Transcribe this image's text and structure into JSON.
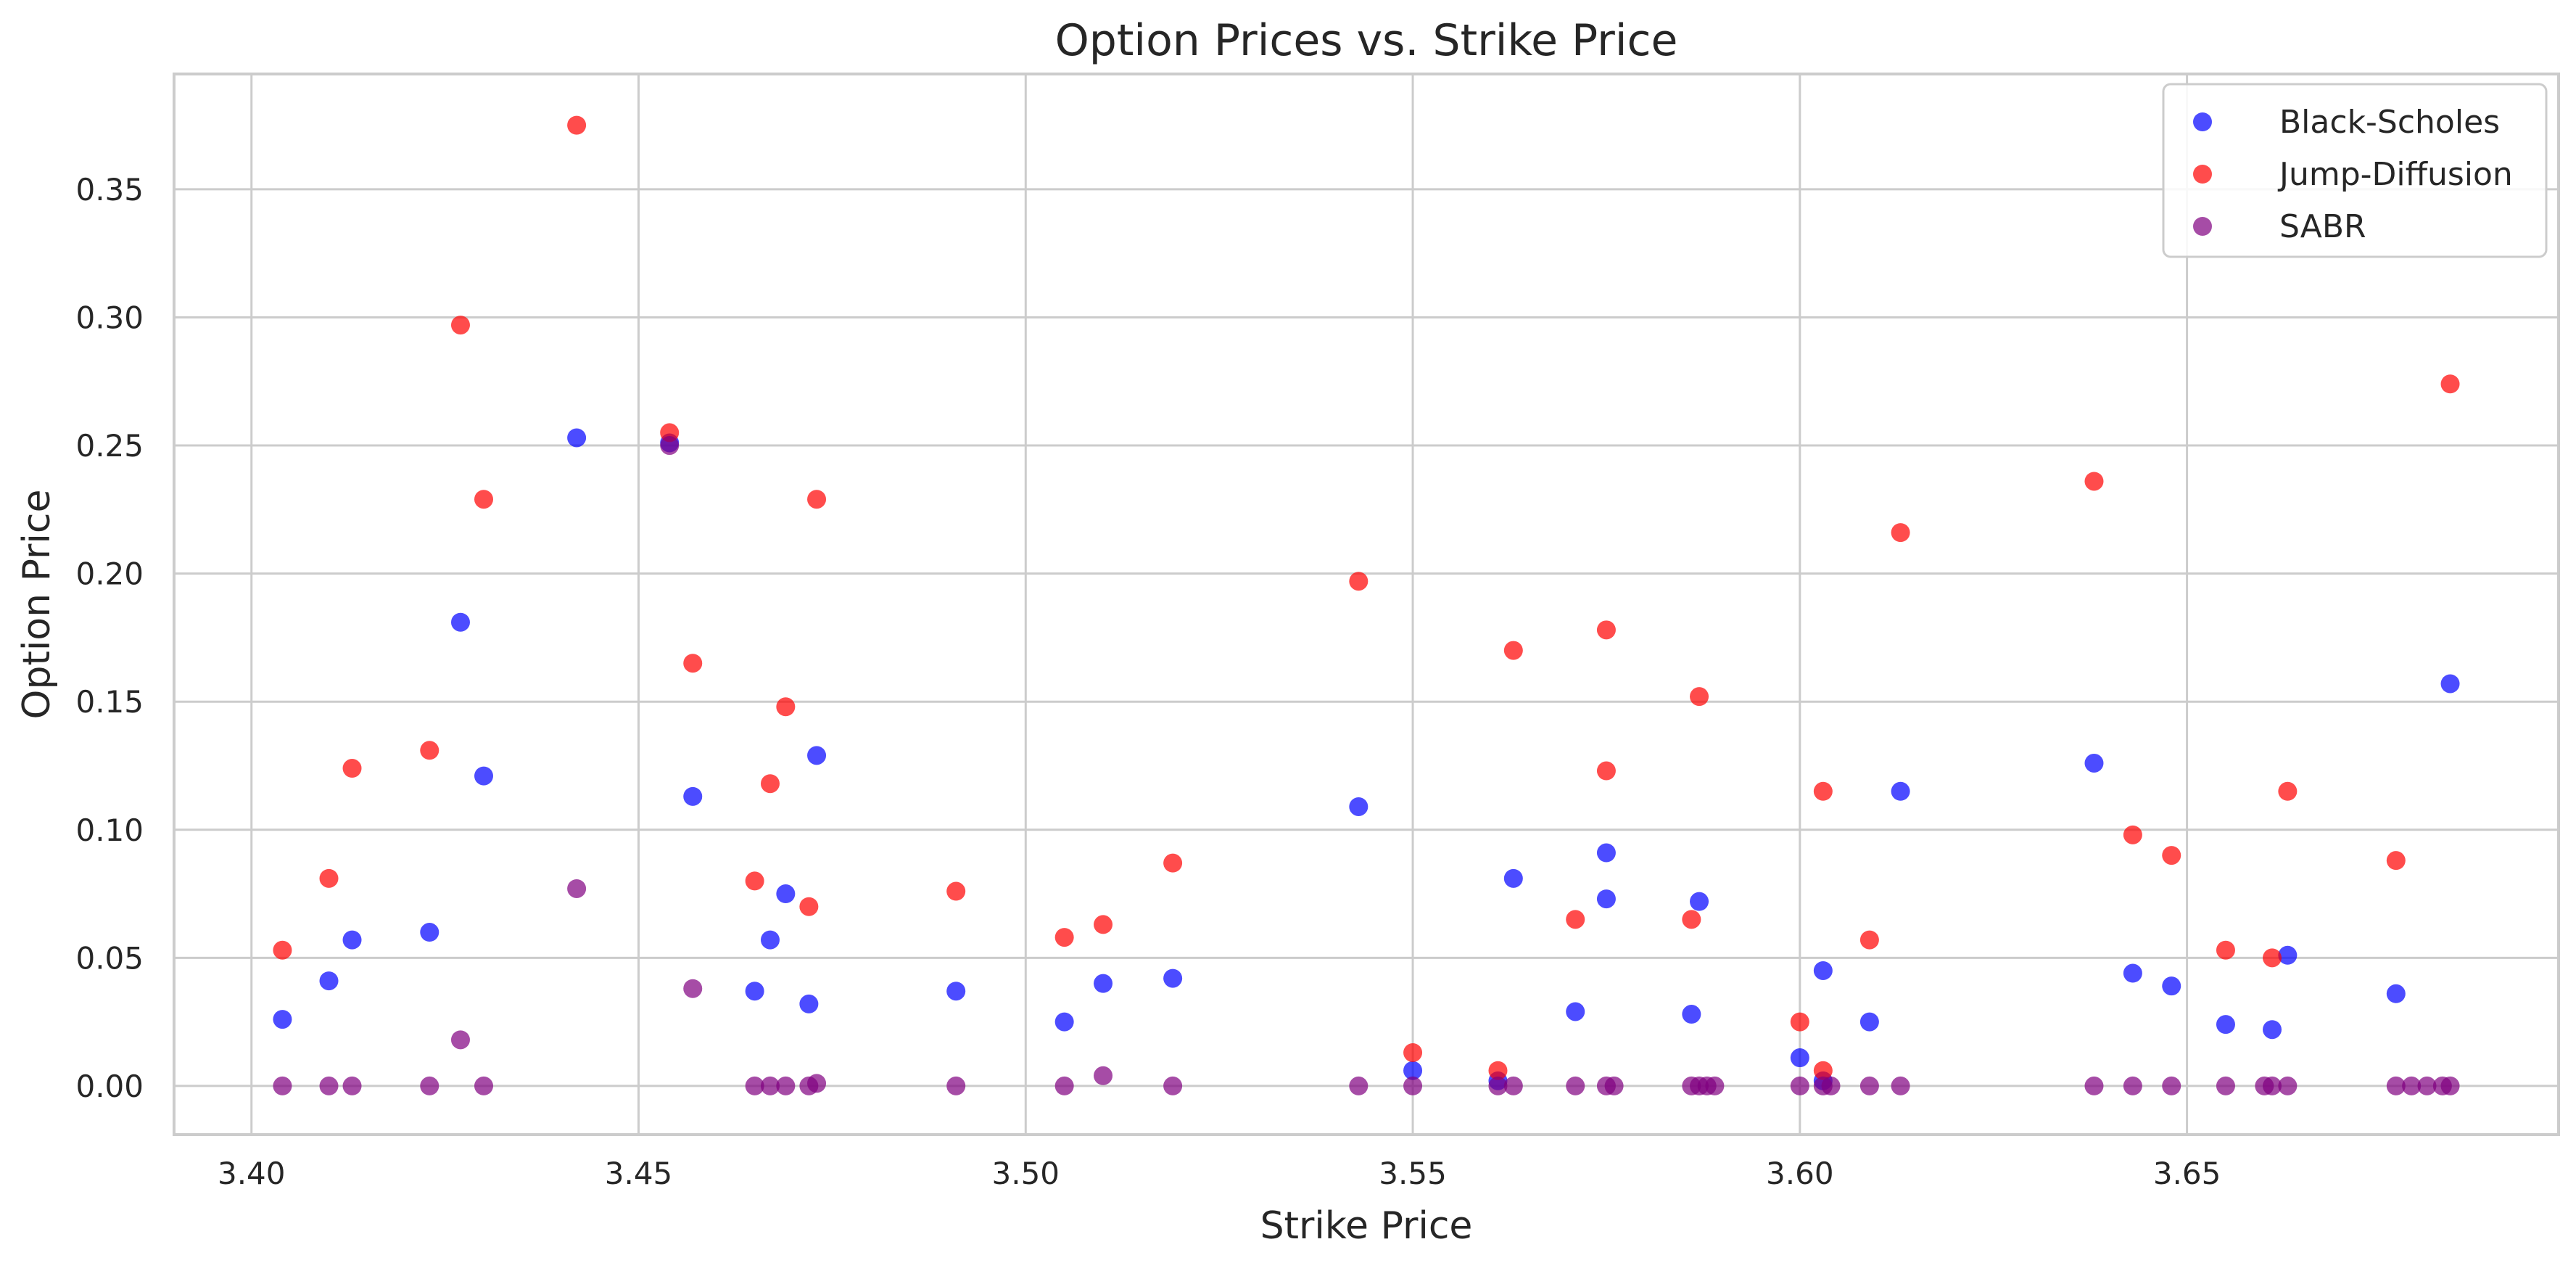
{
  "chart_data": {
    "type": "scatter",
    "title": "Option Prices vs. Strike Price",
    "xlabel": "Strike Price",
    "ylabel": "Option Price",
    "xlim": [
      3.39,
      3.698
    ],
    "ylim": [
      -0.019,
      0.395
    ],
    "xticks": [
      3.4,
      3.45,
      3.5,
      3.55,
      3.6,
      3.65
    ],
    "xtick_labels": [
      "3.40",
      "3.45",
      "3.50",
      "3.55",
      "3.60",
      "3.65"
    ],
    "yticks": [
      0.0,
      0.05,
      0.1,
      0.15,
      0.2,
      0.25,
      0.3,
      0.35
    ],
    "ytick_labels": [
      "0.00",
      "0.05",
      "0.10",
      "0.15",
      "0.20",
      "0.25",
      "0.30",
      "0.35"
    ],
    "grid": true,
    "legend_position": "top-right",
    "series": [
      {
        "name": "Black-Scholes",
        "color": "#0000ff",
        "points": [
          [
            3.404,
            0.026
          ],
          [
            3.41,
            0.041
          ],
          [
            3.413,
            0.057
          ],
          [
            3.423,
            0.06
          ],
          [
            3.427,
            0.181
          ],
          [
            3.43,
            0.121
          ],
          [
            3.442,
            0.253
          ],
          [
            3.454,
            0.251
          ],
          [
            3.457,
            0.113
          ],
          [
            3.465,
            0.037
          ],
          [
            3.467,
            0.057
          ],
          [
            3.469,
            0.075
          ],
          [
            3.472,
            0.032
          ],
          [
            3.473,
            0.129
          ],
          [
            3.491,
            0.037
          ],
          [
            3.505,
            0.025
          ],
          [
            3.51,
            0.04
          ],
          [
            3.519,
            0.042
          ],
          [
            3.543,
            0.109
          ],
          [
            3.55,
            0.006
          ],
          [
            3.561,
            0.002
          ],
          [
            3.563,
            0.081
          ],
          [
            3.571,
            0.029
          ],
          [
            3.575,
            0.091
          ],
          [
            3.575,
            0.073
          ],
          [
            3.586,
            0.028
          ],
          [
            3.587,
            0.072
          ],
          [
            3.6,
            0.011
          ],
          [
            3.603,
            0.045
          ],
          [
            3.603,
            0.002
          ],
          [
            3.609,
            0.025
          ],
          [
            3.613,
            0.115
          ],
          [
            3.638,
            0.126
          ],
          [
            3.643,
            0.044
          ],
          [
            3.648,
            0.039
          ],
          [
            3.655,
            0.024
          ],
          [
            3.661,
            0.022
          ],
          [
            3.663,
            0.051
          ],
          [
            3.677,
            0.036
          ],
          [
            3.684,
            0.157
          ]
        ]
      },
      {
        "name": "Jump-Diffusion",
        "color": "#ff0000",
        "points": [
          [
            3.404,
            0.053
          ],
          [
            3.41,
            0.081
          ],
          [
            3.413,
            0.124
          ],
          [
            3.423,
            0.131
          ],
          [
            3.427,
            0.297
          ],
          [
            3.43,
            0.229
          ],
          [
            3.442,
            0.375
          ],
          [
            3.454,
            0.255
          ],
          [
            3.457,
            0.165
          ],
          [
            3.465,
            0.08
          ],
          [
            3.467,
            0.118
          ],
          [
            3.469,
            0.148
          ],
          [
            3.472,
            0.07
          ],
          [
            3.473,
            0.229
          ],
          [
            3.491,
            0.076
          ],
          [
            3.505,
            0.058
          ],
          [
            3.51,
            0.063
          ],
          [
            3.519,
            0.087
          ],
          [
            3.543,
            0.197
          ],
          [
            3.55,
            0.013
          ],
          [
            3.561,
            0.006
          ],
          [
            3.563,
            0.17
          ],
          [
            3.571,
            0.065
          ],
          [
            3.575,
            0.178
          ],
          [
            3.575,
            0.123
          ],
          [
            3.586,
            0.065
          ],
          [
            3.587,
            0.152
          ],
          [
            3.6,
            0.025
          ],
          [
            3.603,
            0.115
          ],
          [
            3.603,
            0.006
          ],
          [
            3.609,
            0.057
          ],
          [
            3.613,
            0.216
          ],
          [
            3.638,
            0.236
          ],
          [
            3.643,
            0.098
          ],
          [
            3.648,
            0.09
          ],
          [
            3.655,
            0.053
          ],
          [
            3.661,
            0.05
          ],
          [
            3.663,
            0.115
          ],
          [
            3.677,
            0.088
          ],
          [
            3.684,
            0.274
          ]
        ]
      },
      {
        "name": "SABR",
        "color": "#800080",
        "points": [
          [
            3.404,
            0.0
          ],
          [
            3.41,
            0.0
          ],
          [
            3.413,
            0.0
          ],
          [
            3.423,
            0.0
          ],
          [
            3.427,
            0.018
          ],
          [
            3.43,
            0.0
          ],
          [
            3.442,
            0.077
          ],
          [
            3.454,
            0.25
          ],
          [
            3.457,
            0.038
          ],
          [
            3.465,
            0.0
          ],
          [
            3.467,
            0.0
          ],
          [
            3.469,
            0.0
          ],
          [
            3.472,
            0.0
          ],
          [
            3.473,
            0.001
          ],
          [
            3.491,
            0.0
          ],
          [
            3.505,
            0.0
          ],
          [
            3.51,
            0.004
          ],
          [
            3.519,
            0.0
          ],
          [
            3.543,
            0.0
          ],
          [
            3.55,
            0.0
          ],
          [
            3.561,
            0.0
          ],
          [
            3.563,
            0.0
          ],
          [
            3.571,
            0.0
          ],
          [
            3.575,
            0.0
          ],
          [
            3.576,
            0.0
          ],
          [
            3.586,
            0.0
          ],
          [
            3.587,
            0.0
          ],
          [
            3.588,
            0.0
          ],
          [
            3.589,
            0.0
          ],
          [
            3.6,
            0.0
          ],
          [
            3.603,
            0.0
          ],
          [
            3.604,
            0.0
          ],
          [
            3.609,
            0.0
          ],
          [
            3.613,
            0.0
          ],
          [
            3.638,
            0.0
          ],
          [
            3.643,
            0.0
          ],
          [
            3.648,
            0.0
          ],
          [
            3.655,
            0.0
          ],
          [
            3.66,
            0.0
          ],
          [
            3.661,
            0.0
          ],
          [
            3.663,
            0.0
          ],
          [
            3.677,
            0.0
          ],
          [
            3.679,
            0.0
          ],
          [
            3.681,
            0.0
          ],
          [
            3.683,
            0.0
          ],
          [
            3.684,
            0.0
          ]
        ]
      }
    ]
  }
}
